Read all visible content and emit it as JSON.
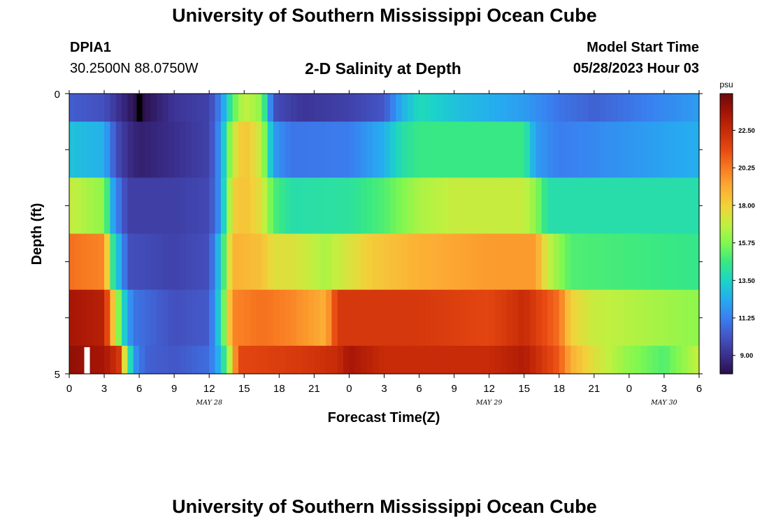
{
  "header": {
    "title": "University of Southern Mississippi Ocean Cube",
    "station_id": "DPIA1",
    "coords": "30.2500N  88.0750W",
    "plot_title": "2-D Salinity at Depth",
    "model_start_label": "Model Start Time",
    "model_start_value": "05/28/2023 Hour 03"
  },
  "footer": {
    "title": "University of Southern Mississippi Ocean Cube"
  },
  "chart_data": {
    "type": "heatmap",
    "title": "2-D Salinity at Depth",
    "xlabel": "Forecast Time(Z)",
    "ylabel": "Depth (ft)",
    "x_unit": "forecast hour",
    "xlim": [
      0,
      54
    ],
    "ylim": [
      0,
      5
    ],
    "x_ticks": [
      0,
      3,
      6,
      9,
      12,
      15,
      18,
      21,
      24,
      27,
      30,
      33,
      36,
      39,
      42,
      45,
      48,
      51,
      54
    ],
    "x_tick_labels": [
      "0",
      "3",
      "6",
      "9",
      "12",
      "15",
      "18",
      "21",
      "0",
      "3",
      "6",
      "9",
      "12",
      "15",
      "18",
      "21",
      "0",
      "3",
      "6"
    ],
    "date_labels": [
      {
        "text": "MAY 28",
        "hour": 12
      },
      {
        "text": "MAY 29",
        "hour": 36
      },
      {
        "text": "MAY 30",
        "hour": 51
      }
    ],
    "y_tick_labels": [
      "0",
      "5"
    ],
    "colorbar": {
      "unit": "psu",
      "min": 7.9,
      "max": 24.7,
      "ticks": [
        "9.00",
        "11.25",
        "13.50",
        "15.75",
        "18.00",
        "20.25",
        "22.50"
      ],
      "colors": [
        "#2a0f48",
        "#3b2f8e",
        "#4454c4",
        "#3a7ff0",
        "#26abf0",
        "#1cd4c8",
        "#38e884",
        "#7ff850",
        "#c0f040",
        "#f2d23a",
        "#fcad34",
        "#f87c22",
        "#e84a12",
        "#c82c08",
        "#a41406",
        "#6e0a0a"
      ]
    },
    "layers": [
      {
        "depth": "0.0-0.5 ft",
        "keys": [
          [
            0,
            10.4
          ],
          [
            3,
            10
          ],
          [
            5,
            8.5
          ],
          [
            6,
            7.8
          ],
          [
            9,
            9.2
          ],
          [
            12,
            9.6
          ],
          [
            13,
            11.5
          ],
          [
            14,
            15
          ],
          [
            15,
            17
          ],
          [
            16.5,
            16
          ],
          [
            17.5,
            10
          ],
          [
            20,
            9.2
          ],
          [
            24,
            9.6
          ],
          [
            27,
            10.2
          ],
          [
            28.5,
            12.5
          ],
          [
            30,
            13.8
          ],
          [
            33,
            13
          ],
          [
            39,
            12
          ],
          [
            42,
            11
          ],
          [
            45,
            10.5
          ],
          [
            54,
            12
          ]
        ]
      },
      {
        "depth": "0.5-1.5 ft",
        "keys": [
          [
            0,
            13
          ],
          [
            3,
            12.5
          ],
          [
            4,
            10
          ],
          [
            5,
            9
          ],
          [
            6,
            8.5
          ],
          [
            9,
            9
          ],
          [
            12,
            9.6
          ],
          [
            13,
            12
          ],
          [
            14,
            17
          ],
          [
            15,
            18.5
          ],
          [
            16.5,
            17
          ],
          [
            17.5,
            12
          ],
          [
            19,
            11
          ],
          [
            24,
            11.2
          ],
          [
            27,
            12.5
          ],
          [
            28.5,
            14
          ],
          [
            30,
            14.6
          ],
          [
            39,
            14.6
          ],
          [
            40,
            12
          ],
          [
            42,
            11.2
          ],
          [
            54,
            12.5
          ]
        ]
      },
      {
        "depth": "1.5-2.5 ft",
        "keys": [
          [
            0,
            17
          ],
          [
            3,
            16
          ],
          [
            3.8,
            12
          ],
          [
            5,
            9.5
          ],
          [
            9,
            9.5
          ],
          [
            12,
            9.8
          ],
          [
            13,
            12
          ],
          [
            14,
            18
          ],
          [
            15,
            18.5
          ],
          [
            16.5,
            17.5
          ],
          [
            17.5,
            15
          ],
          [
            19,
            14
          ],
          [
            24,
            14.2
          ],
          [
            27,
            15
          ],
          [
            30,
            16.5
          ],
          [
            33,
            17
          ],
          [
            39,
            17
          ],
          [
            40,
            16
          ],
          [
            41,
            14
          ],
          [
            54,
            14
          ]
        ]
      },
      {
        "depth": "2.5-3.5 ft",
        "keys": [
          [
            0,
            20.5
          ],
          [
            3,
            20
          ],
          [
            3.8,
            14
          ],
          [
            4.5,
            12
          ],
          [
            5,
            10
          ],
          [
            9,
            9.6
          ],
          [
            12,
            10
          ],
          [
            13,
            13.5
          ],
          [
            14,
            19
          ],
          [
            16.5,
            18.5
          ],
          [
            17.5,
            17.5
          ],
          [
            19,
            17.5
          ],
          [
            22,
            16.5
          ],
          [
            23,
            17
          ],
          [
            26,
            18.2
          ],
          [
            30,
            19
          ],
          [
            36,
            19.5
          ],
          [
            40,
            19.5
          ],
          [
            41,
            17
          ],
          [
            43,
            15
          ],
          [
            54,
            14.5
          ]
        ]
      },
      {
        "depth": "3.5-4.5 ft",
        "keys": [
          [
            0,
            23.5
          ],
          [
            3,
            23
          ],
          [
            4,
            17
          ],
          [
            4.8,
            13
          ],
          [
            5.5,
            11
          ],
          [
            9,
            10
          ],
          [
            12,
            10.3
          ],
          [
            13,
            14
          ],
          [
            14,
            20
          ],
          [
            16.5,
            20.5
          ],
          [
            19,
            20
          ],
          [
            22,
            19
          ],
          [
            23,
            22
          ],
          [
            30,
            22
          ],
          [
            36,
            21.5
          ],
          [
            39,
            22.5
          ],
          [
            42,
            20.5
          ],
          [
            43,
            18
          ],
          [
            45,
            17
          ],
          [
            54,
            16
          ]
        ]
      },
      {
        "depth": "4.5-5.0 ft",
        "keys": [
          [
            0,
            24
          ],
          [
            3,
            23.5
          ],
          [
            4.3,
            22
          ],
          [
            4.8,
            17
          ],
          [
            5.5,
            12
          ],
          [
            6.5,
            10.5
          ],
          [
            9,
            10.2
          ],
          [
            12,
            10.8
          ],
          [
            13,
            13
          ],
          [
            13.8,
            17
          ],
          [
            14.5,
            21.5
          ],
          [
            20,
            22
          ],
          [
            23,
            22.5
          ],
          [
            24,
            23.5
          ],
          [
            27,
            22.5
          ],
          [
            30,
            22.5
          ],
          [
            36,
            22.5
          ],
          [
            39,
            23.2
          ],
          [
            42,
            21
          ],
          [
            43,
            19
          ],
          [
            45,
            17.5
          ],
          [
            48,
            16
          ],
          [
            51,
            15
          ],
          [
            54,
            17
          ]
        ]
      }
    ],
    "missing_cells": [
      {
        "hour": 6,
        "layer": "0.0-0.5 ft"
      },
      {
        "hour": 1.5,
        "layer": "4.5-5.0 ft"
      }
    ]
  }
}
